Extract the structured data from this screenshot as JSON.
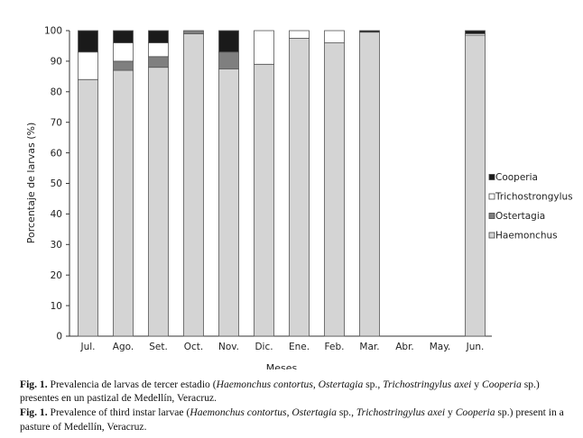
{
  "chart_data": {
    "type": "bar",
    "stacked": true,
    "xlabel": "Meses",
    "ylabel": "Porcentaje de larvas (%)",
    "ylim": [
      0,
      100
    ],
    "yticks": [
      0,
      10,
      20,
      30,
      40,
      50,
      60,
      70,
      80,
      90,
      100
    ],
    "grid": false,
    "legend_position": "right",
    "categories": [
      "Jul.",
      "Ago.",
      "Set.",
      "Oct.",
      "Nov.",
      "Dic.",
      "Ene.",
      "Feb.",
      "Mar.",
      "Abr.",
      "May.",
      "Jun."
    ],
    "series": [
      {
        "name": "Haemonchus",
        "color": "#d4d4d4",
        "values": [
          84,
          87,
          88,
          99,
          87.5,
          89,
          97.5,
          96,
          99.5,
          0,
          0,
          98.5
        ]
      },
      {
        "name": "Ostertagia",
        "color": "#7f7f7f",
        "values": [
          0,
          3,
          3.5,
          1,
          5.5,
          0,
          0,
          0,
          0,
          0,
          0,
          0
        ]
      },
      {
        "name": "Trichostrongylus",
        "color": "#ffffff",
        "values": [
          9,
          6,
          4.5,
          0,
          0,
          11,
          2.5,
          4,
          0,
          0,
          0,
          0.5
        ]
      },
      {
        "name": "Cooperia",
        "color": "#1a1a1a",
        "values": [
          7,
          4,
          4,
          0,
          7,
          0,
          0,
          0,
          0.5,
          0,
          0,
          1
        ]
      }
    ]
  },
  "caption": {
    "fig_label": "Fig. 1.",
    "es": {
      "p1": " Prevalencia de larvas de tercer estadio (",
      "s1": "Haemonchus contortus",
      "p2": ", ",
      "s2": "Ostertagia",
      "p3": " sp., ",
      "s3": "Trichostringylus axei",
      "p4": " y ",
      "s4": "Cooperia",
      "p5": " sp.) presentes en un pastizal de Medellín, Veracruz."
    },
    "en": {
      "p1": " Prevalence of third instar larvae (",
      "s1": "Haemonchus contortus",
      "p2": ", ",
      "s2": "Ostertagia",
      "p3": " sp., ",
      "s3": "Trichostringylus axei",
      "p4": " y ",
      "s4": "Cooperia",
      "p5": " sp.) present in a pasture of Medellín, Veracruz."
    }
  }
}
